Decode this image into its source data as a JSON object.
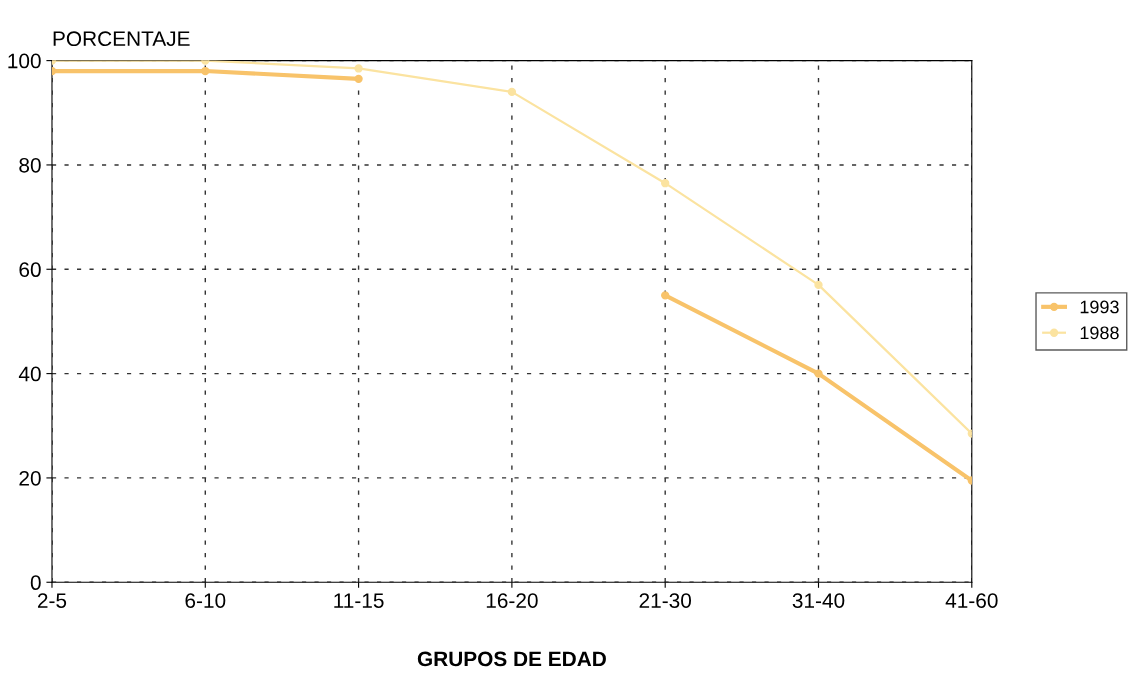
{
  "chart_data": {
    "type": "line",
    "xlabel": "GRUPOS DE EDAD",
    "ylabel": "PORCENTAJE",
    "categories": [
      "2-5",
      "6-10",
      "11-15",
      "16-20",
      "21-30",
      "31-40",
      "41-60"
    ],
    "series": [
      {
        "name": "1993",
        "color": "#f8c36a",
        "values": [
          98,
          98,
          96.5,
          null,
          55,
          40,
          19.5
        ]
      },
      {
        "name": "1988",
        "color": "#fbe3a0",
        "values": [
          100,
          100,
          98.5,
          94,
          76.5,
          57,
          28.5
        ]
      }
    ],
    "ylim": [
      0,
      100
    ],
    "yticks": [
      0,
      20,
      40,
      60,
      80,
      100
    ],
    "grid": true,
    "legend": "right",
    "marker": "circle",
    "line_style": "solid"
  }
}
